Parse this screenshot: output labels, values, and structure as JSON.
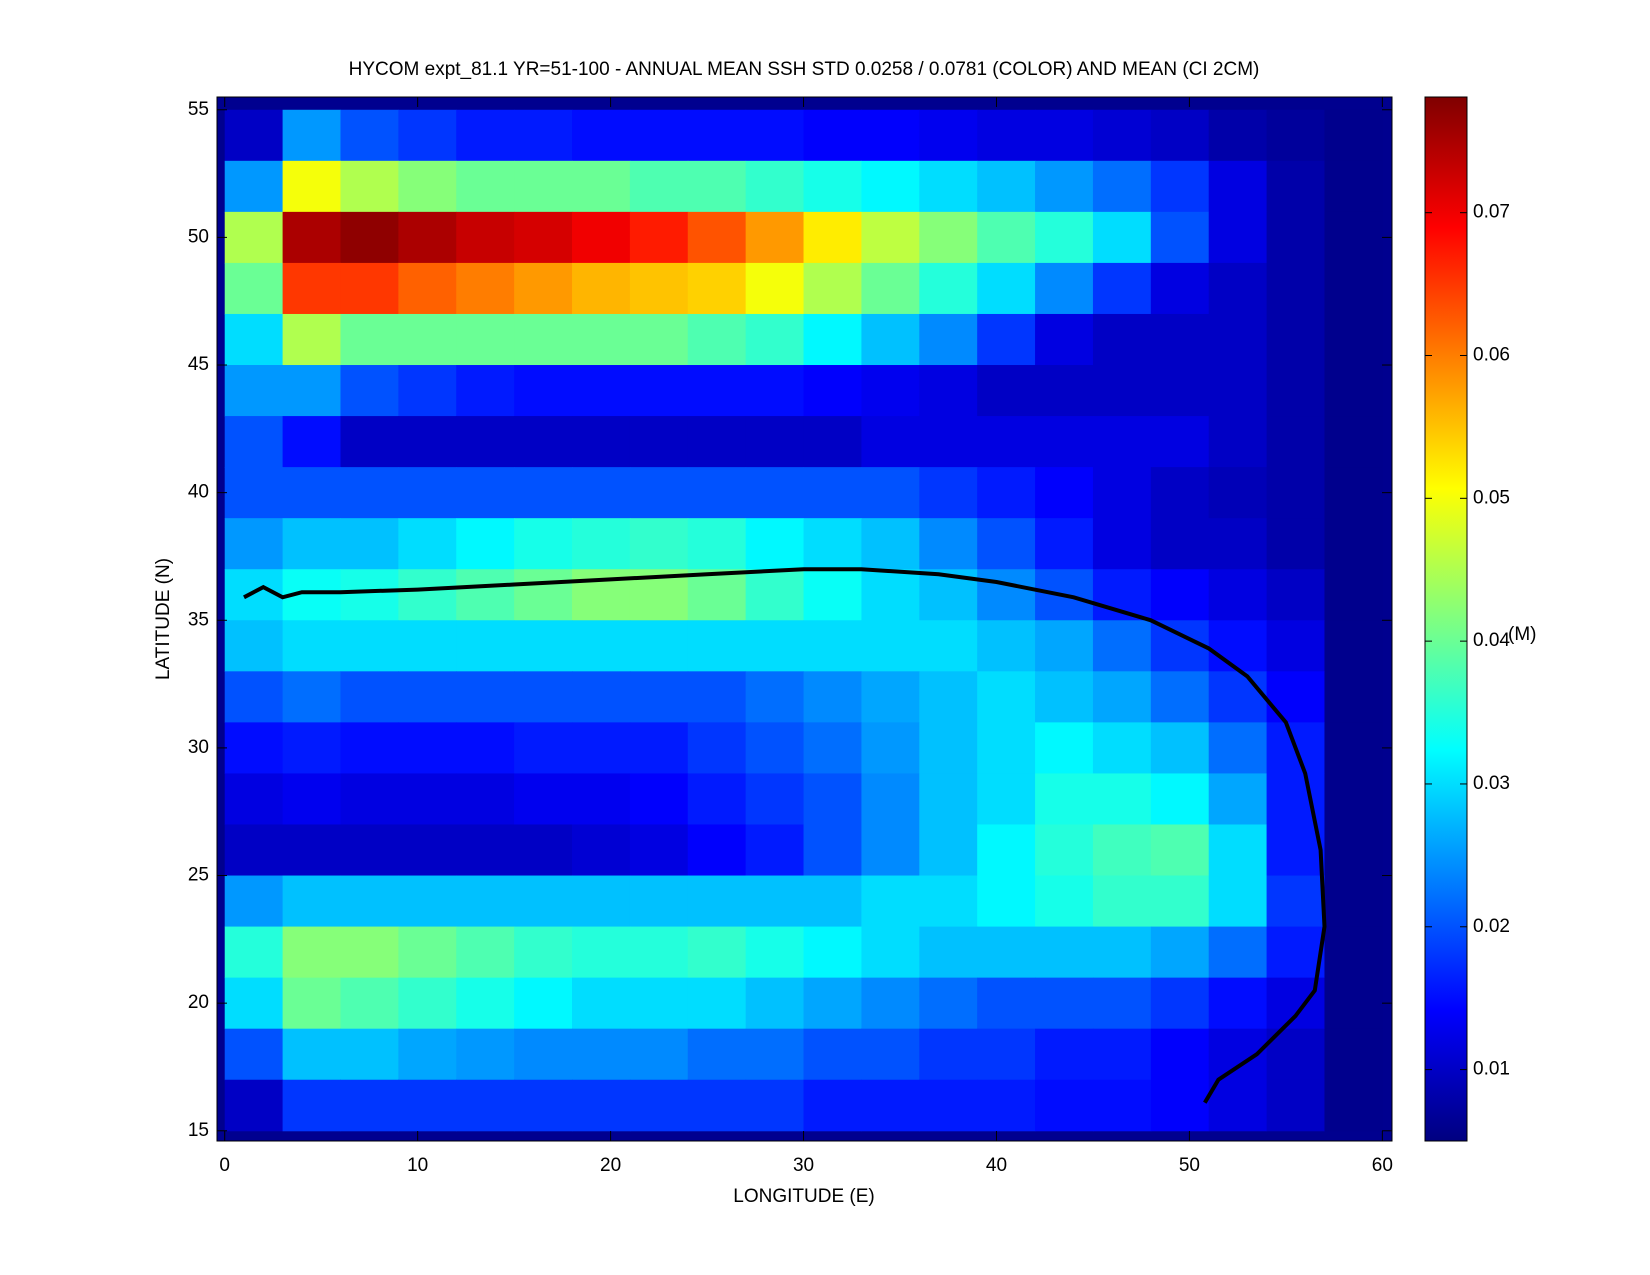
{
  "chart_data": {
    "type": "heatmap",
    "title": "HYCOM expt_81.1 YR=51-100 - ANNUAL MEAN SSH STD 0.0258 / 0.0781 (COLOR) AND MEAN (CI 2CM)",
    "x_label": "LONGITUDE (E)",
    "y_label": "LATITUDE (N)",
    "colorbar_label": "(M)",
    "colormap": "jet",
    "xlim": [
      -0.4,
      60.5
    ],
    "ylim": [
      14.6,
      55.5
    ],
    "xticks": [
      0,
      10,
      20,
      30,
      40,
      50,
      60
    ],
    "yticks": [
      15,
      20,
      25,
      30,
      35,
      40,
      45,
      50,
      55
    ],
    "clim": [
      0.005,
      0.0781
    ],
    "cticks": [
      0.01,
      0.02,
      0.03,
      0.04,
      0.05,
      0.06,
      0.07
    ],
    "x_edges": [
      0,
      3,
      6,
      9,
      12,
      15,
      18,
      21,
      24,
      27,
      30,
      33,
      36,
      39,
      42,
      45,
      48,
      51,
      54,
      57,
      60
    ],
    "y_edges": [
      55,
      53,
      51,
      49,
      47,
      45,
      43,
      41,
      39,
      37,
      35,
      33,
      31,
      29,
      27,
      25,
      23,
      21,
      19,
      17,
      15
    ],
    "z": [
      [
        0.01,
        0.025,
        0.02,
        0.018,
        0.016,
        0.016,
        0.015,
        0.015,
        0.015,
        0.015,
        0.014,
        0.014,
        0.013,
        0.012,
        0.012,
        0.011,
        0.01,
        0.008,
        0.007,
        0.006
      ],
      [
        0.025,
        0.05,
        0.045,
        0.042,
        0.04,
        0.04,
        0.04,
        0.038,
        0.038,
        0.036,
        0.034,
        0.032,
        0.03,
        0.028,
        0.025,
        0.022,
        0.018,
        0.012,
        0.008,
        0.006
      ],
      [
        0.045,
        0.075,
        0.077,
        0.075,
        0.073,
        0.072,
        0.07,
        0.067,
        0.063,
        0.058,
        0.052,
        0.046,
        0.042,
        0.038,
        0.035,
        0.03,
        0.02,
        0.012,
        0.008,
        0.006
      ],
      [
        0.04,
        0.065,
        0.065,
        0.062,
        0.06,
        0.058,
        0.056,
        0.055,
        0.054,
        0.05,
        0.045,
        0.04,
        0.035,
        0.03,
        0.024,
        0.018,
        0.012,
        0.01,
        0.008,
        0.006
      ],
      [
        0.03,
        0.045,
        0.04,
        0.04,
        0.04,
        0.04,
        0.04,
        0.04,
        0.038,
        0.036,
        0.032,
        0.028,
        0.024,
        0.018,
        0.012,
        0.01,
        0.01,
        0.01,
        0.008,
        0.006
      ],
      [
        0.025,
        0.025,
        0.02,
        0.018,
        0.016,
        0.015,
        0.015,
        0.015,
        0.015,
        0.015,
        0.014,
        0.013,
        0.012,
        0.01,
        0.01,
        0.01,
        0.01,
        0.01,
        0.008,
        0.006
      ],
      [
        0.02,
        0.015,
        0.01,
        0.01,
        0.01,
        0.01,
        0.01,
        0.01,
        0.01,
        0.01,
        0.01,
        0.012,
        0.012,
        0.012,
        0.012,
        0.012,
        0.012,
        0.01,
        0.008,
        0.006
      ],
      [
        0.02,
        0.02,
        0.02,
        0.02,
        0.02,
        0.02,
        0.02,
        0.02,
        0.02,
        0.02,
        0.02,
        0.02,
        0.018,
        0.016,
        0.014,
        0.012,
        0.01,
        0.009,
        0.008,
        0.006
      ],
      [
        0.025,
        0.028,
        0.028,
        0.03,
        0.032,
        0.034,
        0.035,
        0.036,
        0.035,
        0.032,
        0.03,
        0.028,
        0.024,
        0.02,
        0.016,
        0.012,
        0.01,
        0.01,
        0.008,
        0.006
      ],
      [
        0.03,
        0.033,
        0.034,
        0.036,
        0.038,
        0.04,
        0.042,
        0.042,
        0.04,
        0.036,
        0.033,
        0.03,
        0.028,
        0.024,
        0.02,
        0.016,
        0.014,
        0.012,
        0.01,
        0.006
      ],
      [
        0.028,
        0.03,
        0.03,
        0.03,
        0.03,
        0.03,
        0.03,
        0.03,
        0.03,
        0.03,
        0.03,
        0.03,
        0.03,
        0.028,
        0.026,
        0.022,
        0.018,
        0.015,
        0.012,
        0.006
      ],
      [
        0.02,
        0.022,
        0.02,
        0.02,
        0.02,
        0.02,
        0.02,
        0.02,
        0.02,
        0.022,
        0.024,
        0.026,
        0.028,
        0.03,
        0.028,
        0.026,
        0.022,
        0.018,
        0.014,
        0.006
      ],
      [
        0.015,
        0.016,
        0.015,
        0.015,
        0.015,
        0.016,
        0.016,
        0.016,
        0.018,
        0.02,
        0.022,
        0.025,
        0.028,
        0.03,
        0.032,
        0.03,
        0.028,
        0.022,
        0.016,
        0.006
      ],
      [
        0.012,
        0.013,
        0.012,
        0.012,
        0.012,
        0.013,
        0.013,
        0.014,
        0.016,
        0.018,
        0.02,
        0.024,
        0.028,
        0.03,
        0.034,
        0.034,
        0.032,
        0.026,
        0.016,
        0.006
      ],
      [
        0.01,
        0.01,
        0.01,
        0.01,
        0.01,
        0.01,
        0.011,
        0.012,
        0.014,
        0.016,
        0.02,
        0.024,
        0.028,
        0.032,
        0.035,
        0.037,
        0.038,
        0.03,
        0.016,
        0.006
      ],
      [
        0.025,
        0.028,
        0.028,
        0.028,
        0.028,
        0.028,
        0.028,
        0.028,
        0.028,
        0.028,
        0.028,
        0.03,
        0.03,
        0.032,
        0.034,
        0.036,
        0.036,
        0.03,
        0.018,
        0.006
      ],
      [
        0.035,
        0.042,
        0.042,
        0.04,
        0.038,
        0.036,
        0.035,
        0.035,
        0.036,
        0.034,
        0.032,
        0.03,
        0.028,
        0.028,
        0.028,
        0.028,
        0.026,
        0.022,
        0.016,
        0.006
      ],
      [
        0.03,
        0.04,
        0.038,
        0.036,
        0.034,
        0.032,
        0.03,
        0.03,
        0.03,
        0.028,
        0.026,
        0.024,
        0.022,
        0.02,
        0.02,
        0.02,
        0.018,
        0.015,
        0.012,
        0.006
      ],
      [
        0.02,
        0.028,
        0.028,
        0.026,
        0.025,
        0.024,
        0.024,
        0.024,
        0.022,
        0.022,
        0.02,
        0.02,
        0.018,
        0.018,
        0.016,
        0.016,
        0.014,
        0.012,
        0.01,
        0.006
      ],
      [
        0.01,
        0.018,
        0.018,
        0.018,
        0.018,
        0.018,
        0.018,
        0.018,
        0.018,
        0.018,
        0.016,
        0.016,
        0.016,
        0.016,
        0.015,
        0.015,
        0.014,
        0.012,
        0.01,
        0.006
      ]
    ],
    "contour": {
      "color": "#000000",
      "lon": [
        1,
        2,
        3,
        4,
        6,
        10,
        15,
        20,
        25,
        30,
        33,
        37,
        40,
        44,
        48,
        51,
        53,
        55,
        56,
        56.8,
        57,
        56.5,
        55.5,
        53.5,
        51.5,
        50.8
      ],
      "lat": [
        35.9,
        36.3,
        35.9,
        36.1,
        36.1,
        36.2,
        36.4,
        36.6,
        36.8,
        37.0,
        37.0,
        36.8,
        36.5,
        35.9,
        35,
        33.9,
        32.8,
        31,
        29,
        26,
        23,
        20.5,
        19.5,
        18,
        17,
        16.1
      ]
    }
  }
}
